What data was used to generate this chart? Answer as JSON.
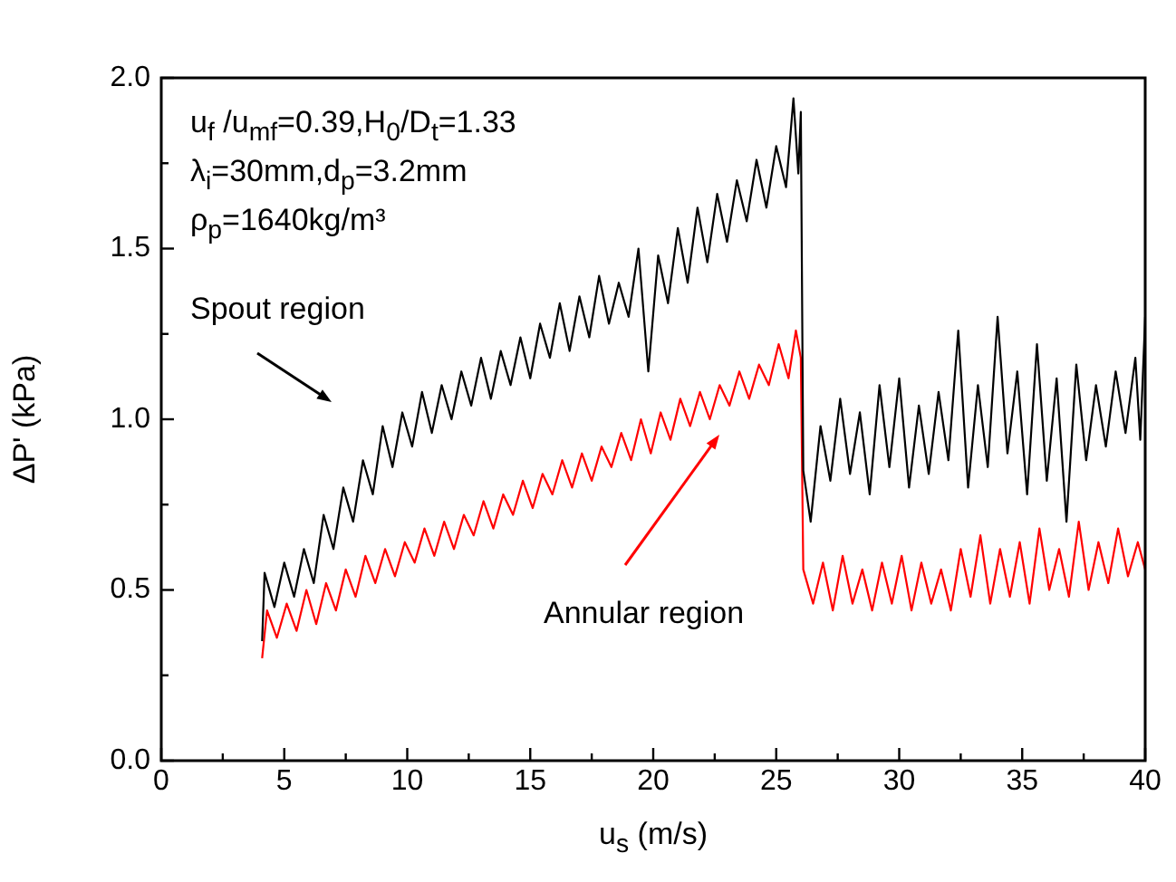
{
  "chart_data": {
    "type": "line",
    "xlabel": "u$_{s}$  (m/s)",
    "ylabel": "ΔP' (kPa)",
    "xlim": [
      0,
      40
    ],
    "ylim": [
      0,
      2.0
    ],
    "xticks": [
      0,
      {
        "value": 2.5,
        "label": null
      },
      5,
      {
        "value": 7.5,
        "label": null
      },
      10,
      {
        "value": 12.5,
        "label": null
      },
      15,
      {
        "value": 17.5,
        "label": null
      },
      20,
      {
        "value": 22.5,
        "label": null
      },
      25,
      {
        "value": 27.5,
        "label": null
      },
      30,
      {
        "value": 32.5,
        "label": null
      },
      35,
      {
        "value": 37.5,
        "label": null
      },
      40
    ],
    "yticks": [
      {
        "value": 0,
        "label": "0.0"
      },
      {
        "value": 0.25,
        "label": null
      },
      {
        "value": 0.5,
        "label": "0.5"
      },
      {
        "value": 0.75,
        "label": null
      },
      {
        "value": 1.0,
        "label": "1.0"
      },
      {
        "value": 1.25,
        "label": null
      },
      {
        "value": 1.5,
        "label": "1.5"
      },
      {
        "value": 1.75,
        "label": null
      },
      {
        "value": 2.0,
        "label": "2.0"
      }
    ],
    "grid": false,
    "legend": false,
    "marker": "none",
    "line_style": "solid",
    "annotations": [
      "u$_{f}$ /u$_{mf}$=0.39,H$_{0}$/D$_{t}$=1.33",
      "λ$_{i}$=30mm,d$_{p}$=3.2mm",
      "ρ$_{p}$=1640kg/m³",
      "Spout region",
      "Annular region"
    ],
    "series": [
      {
        "color": "#000000",
        "x": [
          4.1,
          4.2,
          4.6,
          5.0,
          5.4,
          5.8,
          6.2,
          6.6,
          7.0,
          7.4,
          7.8,
          8.2,
          8.6,
          9.0,
          9.4,
          9.8,
          10.2,
          10.6,
          11.0,
          11.4,
          11.8,
          12.2,
          12.6,
          13.0,
          13.4,
          13.8,
          14.2,
          14.6,
          15.0,
          15.4,
          15.8,
          16.2,
          16.6,
          17.0,
          17.4,
          17.8,
          18.2,
          18.6,
          19.0,
          19.4,
          19.8,
          20.2,
          20.6,
          21.0,
          21.4,
          21.8,
          22.2,
          22.6,
          23.0,
          23.4,
          23.8,
          24.2,
          24.6,
          25.0,
          25.4,
          25.7,
          25.9,
          26.0,
          26.1,
          26.4,
          26.8,
          27.2,
          27.6,
          28.0,
          28.4,
          28.8,
          29.2,
          29.6,
          30.0,
          30.4,
          30.8,
          31.2,
          31.6,
          32.0,
          32.4,
          32.8,
          33.2,
          33.6,
          34.0,
          34.4,
          34.8,
          35.2,
          35.6,
          36.0,
          36.4,
          36.8,
          37.2,
          37.6,
          38.0,
          38.4,
          38.8,
          39.2,
          39.6,
          39.8,
          40.0
        ],
        "values": [
          0.35,
          0.55,
          0.45,
          0.58,
          0.48,
          0.62,
          0.52,
          0.72,
          0.62,
          0.8,
          0.7,
          0.88,
          0.78,
          0.98,
          0.86,
          1.02,
          0.92,
          1.08,
          0.96,
          1.1,
          1.0,
          1.14,
          1.04,
          1.18,
          1.06,
          1.2,
          1.1,
          1.24,
          1.12,
          1.28,
          1.18,
          1.34,
          1.2,
          1.36,
          1.24,
          1.42,
          1.28,
          1.4,
          1.3,
          1.5,
          1.14,
          1.48,
          1.34,
          1.56,
          1.4,
          1.62,
          1.46,
          1.66,
          1.52,
          1.7,
          1.58,
          1.76,
          1.62,
          1.8,
          1.68,
          1.94,
          1.72,
          1.9,
          0.85,
          0.7,
          0.98,
          0.82,
          1.06,
          0.84,
          1.02,
          0.78,
          1.1,
          0.86,
          1.12,
          0.8,
          1.04,
          0.84,
          1.08,
          0.88,
          1.26,
          0.8,
          1.1,
          0.86,
          1.3,
          0.9,
          1.14,
          0.78,
          1.22,
          0.82,
          1.12,
          0.7,
          1.16,
          0.88,
          1.1,
          0.92,
          1.14,
          0.96,
          1.18,
          0.94,
          1.3
        ]
      },
      {
        "color": "#ff0000",
        "x": [
          4.1,
          4.3,
          4.7,
          5.1,
          5.5,
          5.9,
          6.3,
          6.7,
          7.1,
          7.5,
          7.9,
          8.3,
          8.7,
          9.1,
          9.5,
          9.9,
          10.3,
          10.7,
          11.1,
          11.5,
          11.9,
          12.3,
          12.7,
          13.1,
          13.5,
          13.9,
          14.3,
          14.7,
          15.1,
          15.5,
          15.9,
          16.3,
          16.7,
          17.1,
          17.5,
          17.9,
          18.3,
          18.7,
          19.1,
          19.5,
          19.9,
          20.3,
          20.7,
          21.1,
          21.5,
          21.9,
          22.3,
          22.7,
          23.1,
          23.5,
          23.9,
          24.3,
          24.7,
          25.1,
          25.5,
          25.8,
          26.0,
          26.1,
          26.5,
          26.9,
          27.3,
          27.7,
          28.1,
          28.5,
          28.9,
          29.3,
          29.7,
          30.1,
          30.5,
          30.9,
          31.3,
          31.7,
          32.1,
          32.5,
          32.9,
          33.3,
          33.7,
          34.1,
          34.5,
          34.9,
          35.3,
          35.7,
          36.1,
          36.5,
          36.9,
          37.3,
          37.7,
          38.1,
          38.5,
          38.9,
          39.3,
          39.7,
          40.0
        ],
        "values": [
          0.3,
          0.44,
          0.36,
          0.46,
          0.38,
          0.5,
          0.4,
          0.52,
          0.44,
          0.56,
          0.48,
          0.6,
          0.52,
          0.62,
          0.54,
          0.64,
          0.58,
          0.68,
          0.6,
          0.7,
          0.62,
          0.72,
          0.66,
          0.76,
          0.68,
          0.78,
          0.72,
          0.82,
          0.74,
          0.84,
          0.78,
          0.88,
          0.8,
          0.9,
          0.82,
          0.92,
          0.86,
          0.96,
          0.88,
          1.0,
          0.9,
          1.02,
          0.94,
          1.06,
          0.98,
          1.08,
          1.0,
          1.1,
          1.04,
          1.14,
          1.06,
          1.16,
          1.1,
          1.22,
          1.12,
          1.26,
          1.18,
          0.56,
          0.46,
          0.58,
          0.44,
          0.6,
          0.46,
          0.56,
          0.44,
          0.58,
          0.46,
          0.6,
          0.44,
          0.58,
          0.46,
          0.56,
          0.44,
          0.62,
          0.48,
          0.66,
          0.46,
          0.62,
          0.48,
          0.64,
          0.46,
          0.68,
          0.5,
          0.62,
          0.48,
          0.7,
          0.5,
          0.64,
          0.52,
          0.68,
          0.54,
          0.64,
          0.56
        ]
      }
    ]
  }
}
